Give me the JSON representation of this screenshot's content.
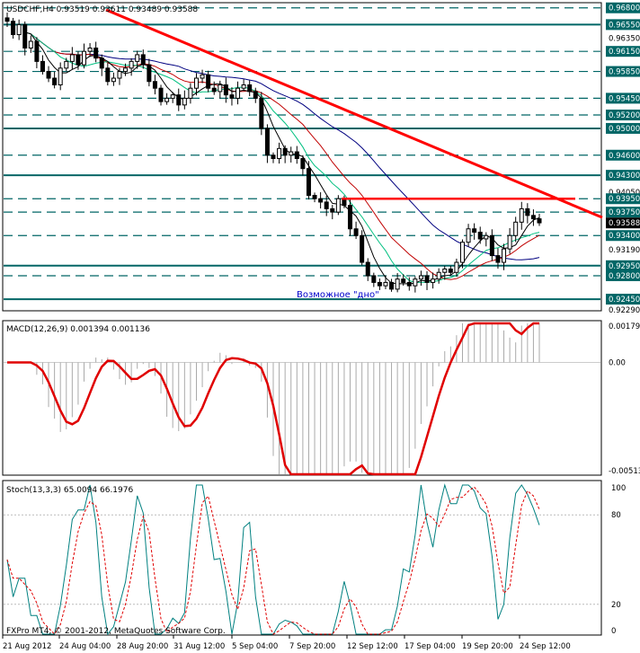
{
  "main": {
    "header": "USDCHF,H4  0.93519 0.93611 0.93489 0.93588",
    "annotation": "Возможное \"дно\"",
    "current_price": "0.93588",
    "price_ticks": [
      "0.96800",
      "0.96550",
      "0.96350",
      "0.96150",
      "0.95850",
      "0.95450",
      "0.95200",
      "0.95000",
      "0.94600",
      "0.94300",
      "0.94050",
      "0.93950",
      "0.93750",
      "0.93400",
      "0.93190",
      "0.92950",
      "0.92800",
      "0.92450",
      "0.92290"
    ],
    "highlighted_ticks": [
      "0.96800",
      "0.96550",
      "0.96150",
      "0.95850",
      "0.95450",
      "0.95200",
      "0.95000",
      "0.94600",
      "0.94300",
      "0.93950",
      "0.93750",
      "0.93400",
      "0.92950",
      "0.92800",
      "0.92450"
    ]
  },
  "macd": {
    "header": "MACD(12,26,9) 0.001394 0.001136",
    "ticks": [
      "0.00179",
      "0.00",
      "-0.00513"
    ]
  },
  "stoch": {
    "header": "Stoch(13,3,3) 65.0094 66.1976",
    "ticks": [
      "100",
      "80",
      "20",
      "0"
    ]
  },
  "footer": "FXPro MT4, © 2001-2012, MetaQuotes Software Corp.",
  "time_ticks": [
    "21 Aug 2012",
    "24 Aug 04:00",
    "28 Aug 20:00",
    "31 Aug 12:00",
    "5 Sep 04:00",
    "7 Sep 20:00",
    "12 Sep 12:00",
    "17 Sep 04:00",
    "19 Sep 20:00",
    "24 Sep 12:00"
  ],
  "colors": {
    "candle": "#000000",
    "support": "#006666",
    "trendline": "#ff0000",
    "ma_slow": "#000080",
    "ma_mid": "#00c080",
    "ma_fast": "#000000",
    "ma_red": "#c00000",
    "macd_signal": "#e00000",
    "macd_hist": "#aaaaaa",
    "stoch_main": "#008080",
    "stoch_signal": "#e00000",
    "annotation": "#0000cc"
  },
  "chart_data": [
    {
      "type": "candlestick",
      "title": "USDCHF,H4",
      "ylim": [
        0.9229,
        0.9685
      ],
      "close_series": [
        0.966,
        0.964,
        0.9655,
        0.962,
        0.963,
        0.96,
        0.9585,
        0.9575,
        0.9565,
        0.959,
        0.96,
        0.961,
        0.9595,
        0.9615,
        0.962,
        0.9605,
        0.959,
        0.957,
        0.9575,
        0.9585,
        0.959,
        0.96,
        0.961,
        0.9595,
        0.957,
        0.956,
        0.954,
        0.9545,
        0.955,
        0.9535,
        0.9545,
        0.956,
        0.9575,
        0.958,
        0.956,
        0.9555,
        0.9565,
        0.955,
        0.9545,
        0.956,
        0.9565,
        0.9555,
        0.9545,
        0.95,
        0.946,
        0.9455,
        0.947,
        0.946,
        0.9465,
        0.9455,
        0.944,
        0.94,
        0.9395,
        0.939,
        0.938,
        0.9375,
        0.9395,
        0.9385,
        0.935,
        0.934,
        0.93,
        0.928,
        0.927,
        0.9265,
        0.927,
        0.926,
        0.9275,
        0.927,
        0.9265,
        0.9275,
        0.928,
        0.927,
        0.9275,
        0.9285,
        0.929,
        0.9285,
        0.93,
        0.933,
        0.935,
        0.9345,
        0.9335,
        0.934,
        0.931,
        0.93,
        0.932,
        0.934,
        0.936,
        0.938,
        0.937,
        0.9365,
        0.9359
      ],
      "horizontal_levels": [
        0.968,
        0.9655,
        0.9615,
        0.9585,
        0.9545,
        0.952,
        0.95,
        0.946,
        0.943,
        0.9395,
        0.9375,
        0.934,
        0.9295,
        0.928,
        0.9245
      ],
      "current_price": 0.93588
    },
    {
      "type": "line",
      "title": "MACD(12,26,9)",
      "ylim": [
        -0.00513,
        0.00179
      ],
      "main_value": 0.001394,
      "signal_value": 0.001136
    },
    {
      "type": "line",
      "title": "Stoch(13,3,3)",
      "ylim": [
        0,
        100
      ],
      "levels": [
        20,
        80
      ],
      "main_value": 65.0094,
      "signal_value": 66.1976
    }
  ]
}
